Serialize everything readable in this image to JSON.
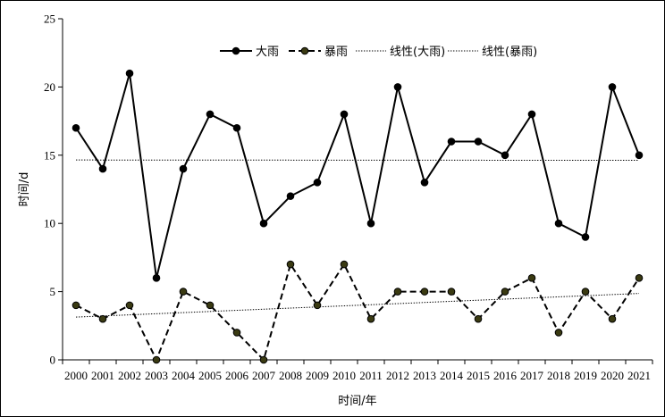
{
  "chart_data": {
    "type": "line",
    "x": [
      2000,
      2001,
      2002,
      2003,
      2004,
      2005,
      2006,
      2007,
      2008,
      2009,
      2010,
      2011,
      2012,
      2013,
      2014,
      2015,
      2016,
      2017,
      2018,
      2019,
      2020,
      2021
    ],
    "categories": [
      "2000",
      "2001",
      "2002",
      "2003",
      "2004",
      "2005",
      "2006",
      "2007",
      "2008",
      "2009",
      "2010",
      "2011",
      "2012",
      "2013",
      "2014",
      "2015",
      "2016",
      "2017",
      "2018",
      "2019",
      "2020",
      "2021"
    ],
    "series": [
      {
        "name": "大雨",
        "values": [
          17,
          14,
          21,
          6,
          14,
          18,
          17,
          10,
          12,
          13,
          18,
          10,
          20,
          13,
          16,
          16,
          15,
          18,
          10,
          9,
          20,
          15
        ],
        "style": "solid",
        "marker_color": "#000000"
      },
      {
        "name": "暴雨",
        "values": [
          4,
          3,
          4,
          0,
          5,
          4,
          2,
          0,
          7,
          4,
          7,
          3,
          5,
          5,
          5,
          3,
          5,
          6,
          2,
          5,
          3,
          6
        ],
        "style": "dashed",
        "marker_color": "#3a3a12"
      }
    ],
    "trendlines": [
      {
        "name": "线性(大雨)",
        "of": "大雨",
        "style": "dotted"
      },
      {
        "name": "线性(暴雨)",
        "of": "暴雨",
        "style": "dotted"
      }
    ],
    "xlabel": "时间/年",
    "ylabel": "时间/d",
    "ylim": [
      0,
      25
    ],
    "yticks": [
      "0",
      "5",
      "10",
      "15",
      "20",
      "25"
    ],
    "grid": false,
    "legend_position": "top"
  }
}
